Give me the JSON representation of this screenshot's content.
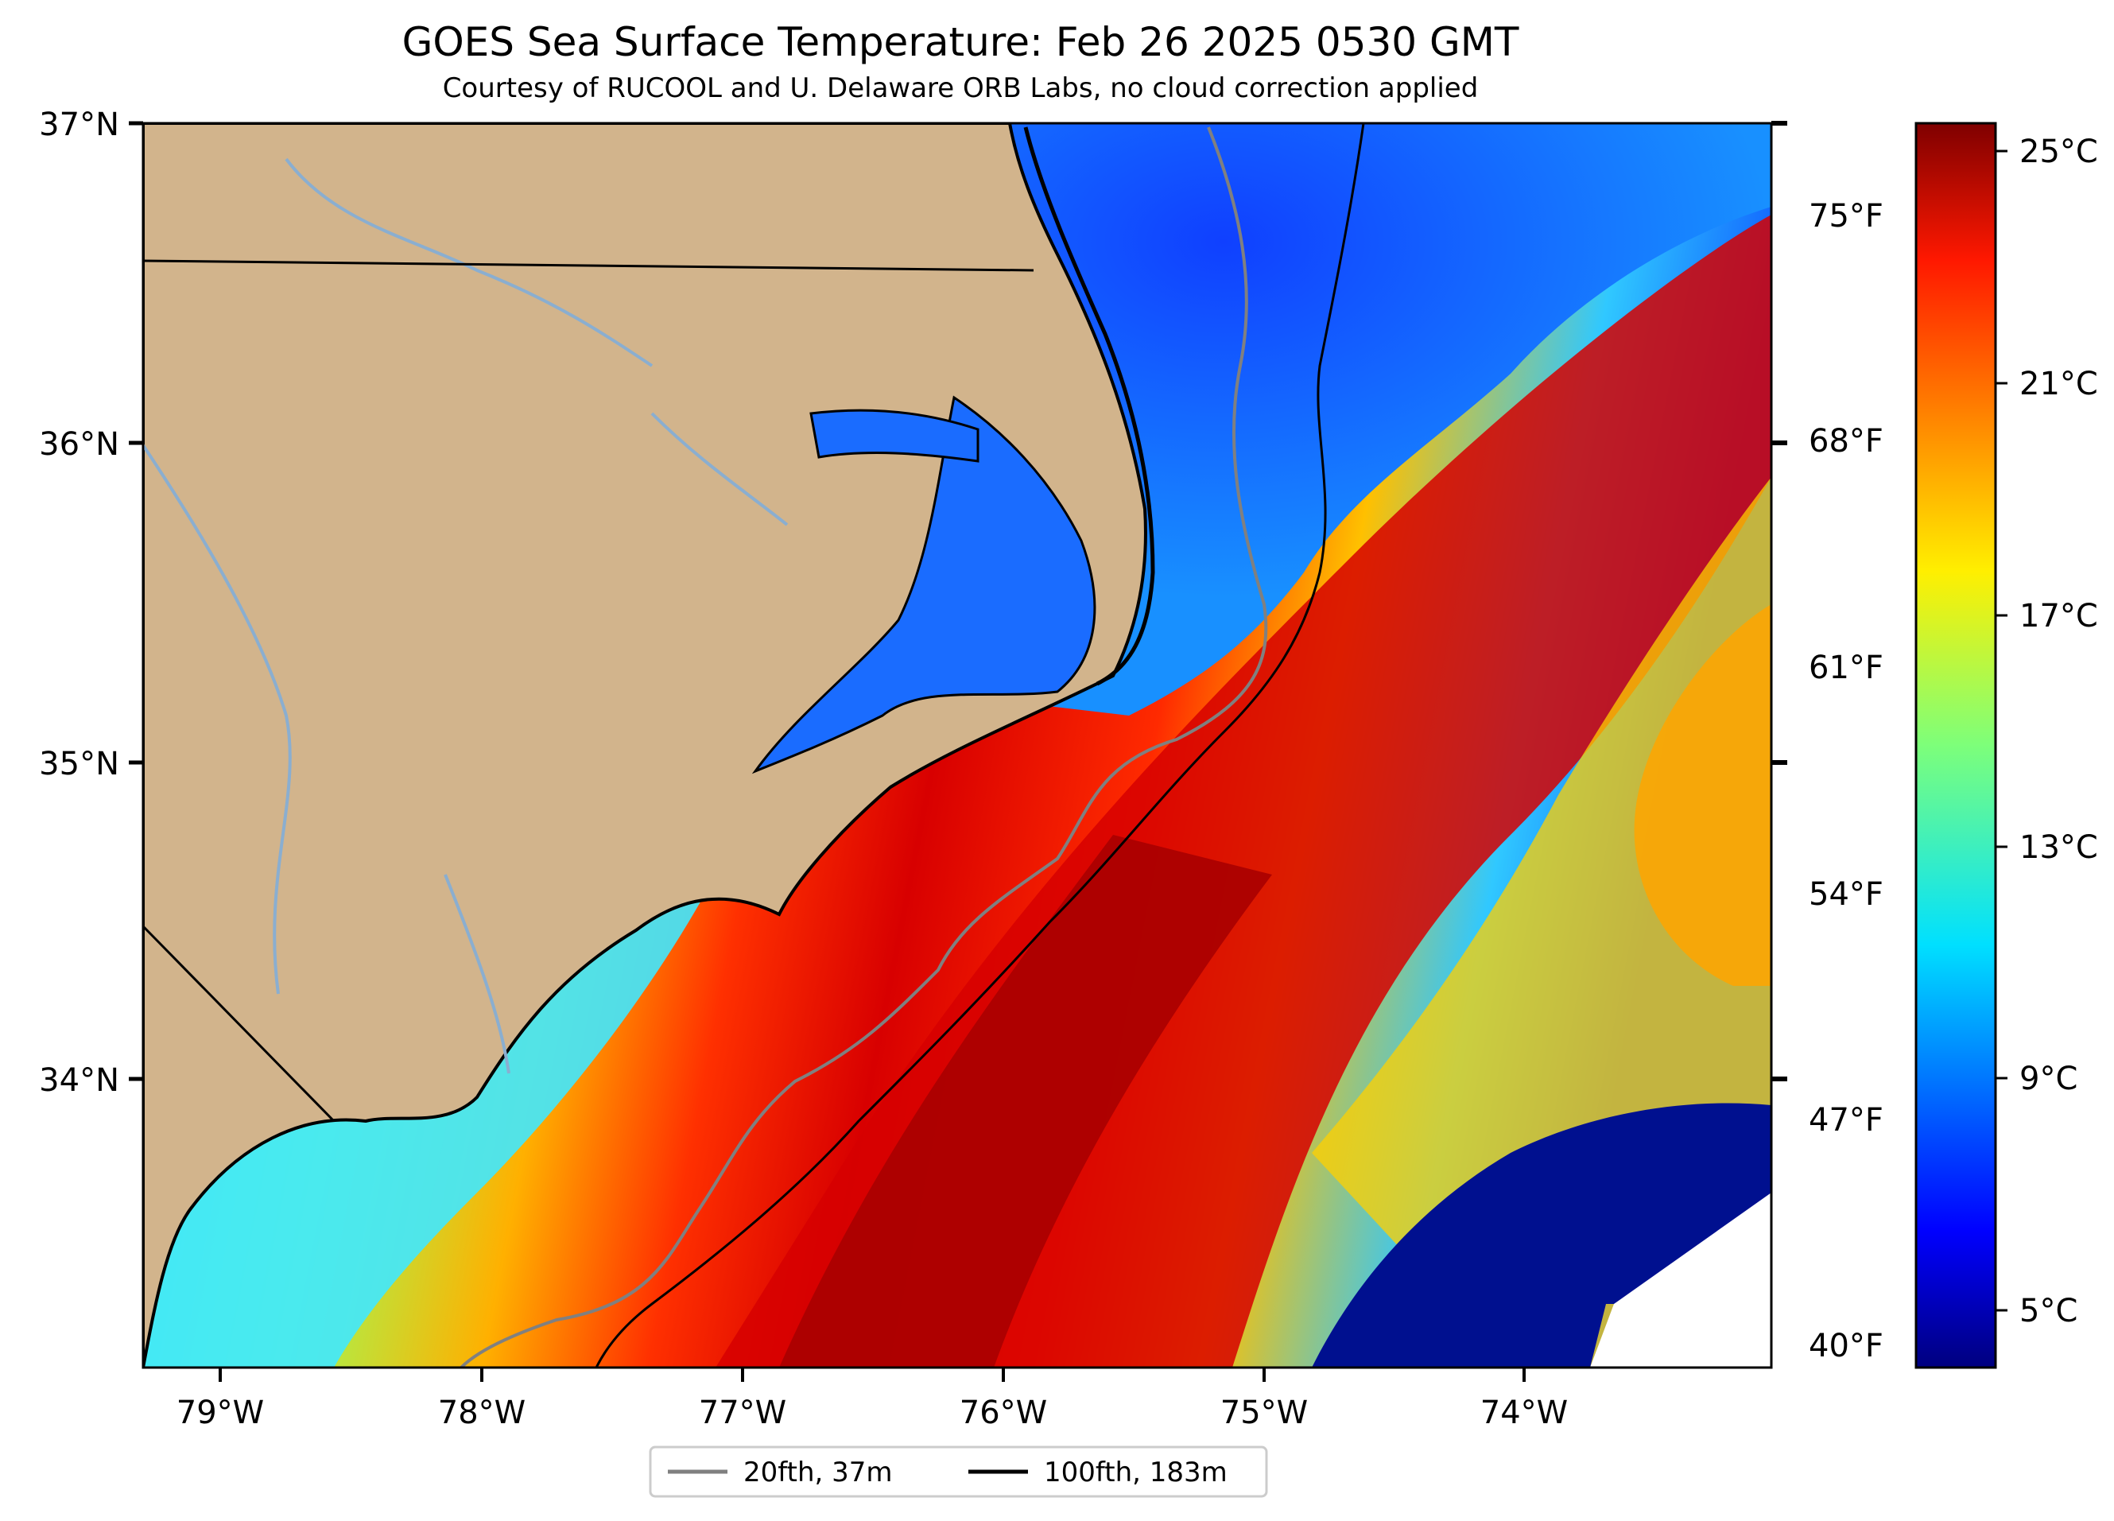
{
  "figure": {
    "title": "GOES Sea Surface Temperature: Feb 26 2025 0530 GMT",
    "subtitle": "Courtesy of RUCOOL and U. Delaware ORB Labs, no cloud correction applied"
  },
  "map": {
    "lon_range": [
      -79.3,
      -73.1
    ],
    "lat_range": [
      33.1,
      37.0
    ],
    "lon_ticks": [
      "79°W",
      "78°W",
      "77°W",
      "76°W",
      "75°W",
      "74°W"
    ],
    "lat_ticks": [
      "37°N",
      "36°N",
      "35°N",
      "34°N"
    ],
    "fahrenheit_ticks": [
      "75°F",
      "68°F",
      "61°F",
      "54°F",
      "47°F",
      "40°F"
    ],
    "land_color": "#d2b48c",
    "water_color": "#9ab4d0",
    "isobath_20_color": "#808080",
    "isobath_100_color": "#000000"
  },
  "colorbar": {
    "colormap": "jet",
    "range_c": [
      4,
      25.5
    ],
    "ticks": [
      "25°C",
      "21°C",
      "17°C",
      "13°C",
      "9°C",
      "5°C"
    ]
  },
  "legend": {
    "items": [
      {
        "label": "20fth, 37m",
        "color": "#808080"
      },
      {
        "label": "100fth, 183m",
        "color": "#000000"
      }
    ]
  }
}
